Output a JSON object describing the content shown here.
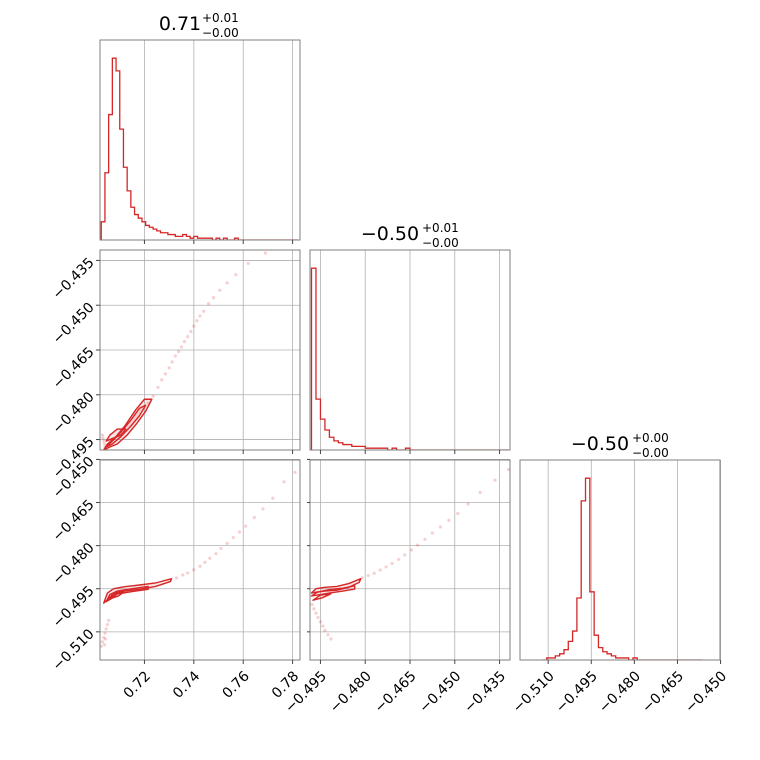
{
  "chart_data": {
    "type": "corner",
    "color": "#d62728",
    "parameters": [
      {
        "title_value": "0.71",
        "title_upper": "+0.01",
        "title_lower": "−0.00",
        "range": [
          0.702,
          0.783
        ],
        "ticks": [
          0.72,
          0.74,
          0.76,
          0.78
        ],
        "tick_labels": [
          "0.72",
          "0.74",
          "0.76",
          "0.78"
        ]
      },
      {
        "title_value": "−0.50",
        "title_upper": "+0.01",
        "title_lower": "−0.00",
        "range": [
          -0.4985,
          -0.4315
        ],
        "ticks": [
          -0.495,
          -0.48,
          -0.465,
          -0.45,
          -0.435
        ],
        "tick_labels": [
          "−0.495",
          "−0.480",
          "−0.465",
          "−0.450",
          "−0.435"
        ]
      },
      {
        "title_value": "−0.50",
        "title_upper": "+0.00",
        "title_lower": "−0.00",
        "range": [
          -0.5198,
          -0.4502
        ],
        "ticks": [
          -0.51,
          -0.495,
          -0.48,
          -0.465,
          -0.45
        ],
        "tick_labels": [
          "−0.510",
          "−0.495",
          "−0.480",
          "−0.465",
          "−0.450"
        ]
      }
    ],
    "histograms": [
      {
        "parameter": 0,
        "bin_edges": [
          0.7025,
          0.704,
          0.7055,
          0.707,
          0.7085,
          0.71,
          0.7115,
          0.713,
          0.7145,
          0.716,
          0.7175,
          0.719,
          0.7205,
          0.722,
          0.7235,
          0.725,
          0.7265,
          0.728,
          0.7295,
          0.731,
          0.7325,
          0.734,
          0.7355,
          0.737,
          0.7385,
          0.74,
          0.7415,
          0.743,
          0.7445,
          0.746,
          0.7475,
          0.749,
          0.7505,
          0.752,
          0.7535,
          0.755,
          0.7565,
          0.758,
          0.7595,
          0.761,
          0.7625,
          0.764,
          0.7655,
          0.767,
          0.7685,
          0.77,
          0.7715,
          0.773,
          0.7745,
          0.776,
          0.7775,
          0.779,
          0.7805,
          0.782
        ],
        "counts": [
          10,
          37,
          69,
          100,
          93,
          61,
          40,
          27,
          18,
          14,
          12,
          10,
          8,
          7,
          6,
          5,
          4,
          4,
          3,
          3,
          2,
          2,
          3,
          2,
          1,
          2,
          1,
          1,
          1,
          1,
          0,
          1,
          0,
          1,
          0,
          0,
          1,
          0,
          0,
          0,
          0,
          0,
          0,
          0,
          0,
          0,
          0,
          0,
          0,
          0,
          0,
          0,
          0
        ]
      },
      {
        "parameter": 1,
        "bin_edges": [
          -0.498,
          -0.4965,
          -0.495,
          -0.4935,
          -0.492,
          -0.4905,
          -0.489,
          -0.4875,
          -0.486,
          -0.4845,
          -0.483,
          -0.4815,
          -0.48,
          -0.4785,
          -0.477,
          -0.4755,
          -0.474,
          -0.4725,
          -0.471,
          -0.4695,
          -0.468,
          -0.4665,
          -0.465,
          -0.4635,
          -0.462,
          -0.4605,
          -0.459,
          -0.4575,
          -0.456,
          -0.4545,
          -0.453,
          -0.4515,
          -0.45,
          -0.4485,
          -0.447,
          -0.4455,
          -0.444,
          -0.4425,
          -0.441,
          -0.4395,
          -0.438,
          -0.4365,
          -0.435,
          -0.4335,
          -0.432
        ],
        "counts": [
          100,
          28,
          17,
          11,
          7,
          5,
          4,
          3,
          3,
          2,
          2,
          2,
          1,
          1,
          1,
          1,
          1,
          0,
          1,
          0,
          0,
          1,
          0,
          0,
          0,
          0,
          0,
          0,
          0,
          0,
          0,
          0,
          0,
          0,
          0,
          0,
          0,
          0,
          0,
          0,
          0,
          0,
          0,
          0
        ]
      },
      {
        "parameter": 2,
        "bin_edges": [
          -0.512,
          -0.5105,
          -0.509,
          -0.5075,
          -0.506,
          -0.5045,
          -0.503,
          -0.5015,
          -0.5,
          -0.4985,
          -0.497,
          -0.4955,
          -0.494,
          -0.4925,
          -0.491,
          -0.4895,
          -0.488,
          -0.4865,
          -0.485,
          -0.4835,
          -0.482,
          -0.4805,
          -0.479,
          -0.4775,
          -0.476,
          -0.4745,
          -0.473,
          -0.4715,
          -0.47,
          -0.4685,
          -0.467,
          -0.4655,
          -0.464,
          -0.4625,
          -0.461,
          -0.4595,
          -0.458,
          -0.4565
        ],
        "counts": [
          0,
          1,
          1,
          2,
          3,
          5,
          9,
          14,
          30,
          77,
          88,
          33,
          12,
          6,
          4,
          3,
          2,
          1,
          1,
          1,
          0,
          1,
          0,
          0,
          0,
          0,
          0,
          0,
          0,
          0,
          0,
          0,
          0,
          0,
          0,
          0,
          0
        ]
      }
    ],
    "pairs": [
      {
        "x_param": 0,
        "y_param": 1,
        "contours": [
          [
            [
              0.7035,
              -0.4985
            ],
            [
              0.706,
              -0.4975
            ],
            [
              0.709,
              -0.4965
            ],
            [
              0.713,
              -0.4935
            ],
            [
              0.717,
              -0.4895
            ],
            [
              0.7205,
              -0.4855
            ],
            [
              0.723,
              -0.4815
            ],
            [
              0.72,
              -0.4815
            ],
            [
              0.7165,
              -0.485
            ],
            [
              0.712,
              -0.4905
            ],
            [
              0.7085,
              -0.494
            ],
            [
              0.705,
              -0.4965
            ],
            [
              0.7035,
              -0.4985
            ]
          ],
          [
            [
              0.7045,
              -0.4975
            ],
            [
              0.707,
              -0.4965
            ],
            [
              0.7105,
              -0.494
            ],
            [
              0.7145,
              -0.4905
            ],
            [
              0.718,
              -0.487
            ],
            [
              0.7205,
              -0.4835
            ],
            [
              0.718,
              -0.4845
            ],
            [
              0.7145,
              -0.4885
            ],
            [
              0.7105,
              -0.4925
            ],
            [
              0.707,
              -0.4955
            ],
            [
              0.7045,
              -0.4975
            ]
          ],
          [
            [
              0.7045,
              -0.4955
            ],
            [
              0.7075,
              -0.4945
            ],
            [
              0.7105,
              -0.4935
            ],
            [
              0.7125,
              -0.4915
            ],
            [
              0.709,
              -0.4915
            ],
            [
              0.706,
              -0.4935
            ],
            [
              0.7045,
              -0.4955
            ]
          ]
        ],
        "scatter": [
          [
            0.703,
            -0.4935
          ],
          [
            0.7032,
            -0.4945
          ],
          [
            0.7035,
            -0.4955
          ],
          [
            0.7038,
            -0.4965
          ],
          [
            0.704,
            -0.4975
          ],
          [
            0.7042,
            -0.4982
          ],
          [
            0.7215,
            -0.4828
          ],
          [
            0.7235,
            -0.4805
          ],
          [
            0.7255,
            -0.4775
          ],
          [
            0.727,
            -0.475
          ],
          [
            0.7285,
            -0.473
          ],
          [
            0.73,
            -0.471
          ],
          [
            0.7312,
            -0.469
          ],
          [
            0.7325,
            -0.467
          ],
          [
            0.7338,
            -0.4655
          ],
          [
            0.735,
            -0.464
          ],
          [
            0.7362,
            -0.4622
          ],
          [
            0.7375,
            -0.4605
          ],
          [
            0.7388,
            -0.4588
          ],
          [
            0.74,
            -0.457
          ],
          [
            0.7412,
            -0.4552
          ],
          [
            0.7425,
            -0.4536
          ],
          [
            0.744,
            -0.452
          ],
          [
            0.746,
            -0.4495
          ],
          [
            0.748,
            -0.4475
          ],
          [
            0.7505,
            -0.445
          ],
          [
            0.7535,
            -0.4425
          ],
          [
            0.757,
            -0.4398
          ],
          [
            0.762,
            -0.436
          ],
          [
            0.769,
            -0.4325
          ],
          [
            0.7785,
            -0.4308
          ]
        ]
      },
      {
        "x_param": 0,
        "y_param": 2,
        "contours": [
          [
            [
              0.7035,
              -0.5
            ],
            [
              0.705,
              -0.4965
            ],
            [
              0.7075,
              -0.495
            ],
            [
              0.712,
              -0.4943
            ],
            [
              0.718,
              -0.4937
            ],
            [
              0.7245,
              -0.493
            ],
            [
              0.731,
              -0.4915
            ],
            [
              0.7305,
              -0.4925
            ],
            [
              0.7245,
              -0.4942
            ],
            [
              0.718,
              -0.4952
            ],
            [
              0.712,
              -0.4958
            ],
            [
              0.7075,
              -0.4965
            ],
            [
              0.7055,
              -0.4985
            ],
            [
              0.7035,
              -0.5
            ]
          ],
          [
            [
              0.7045,
              -0.4995
            ],
            [
              0.706,
              -0.497
            ],
            [
              0.709,
              -0.4958
            ],
            [
              0.715,
              -0.495
            ],
            [
              0.7215,
              -0.4942
            ],
            [
              0.7215,
              -0.4952
            ],
            [
              0.715,
              -0.496
            ],
            [
              0.709,
              -0.4968
            ],
            [
              0.7065,
              -0.4985
            ],
            [
              0.7045,
              -0.4995
            ]
          ],
          [
            [
              0.706,
              -0.4985
            ],
            [
              0.708,
              -0.4968
            ],
            [
              0.7115,
              -0.4962
            ],
            [
              0.7095,
              -0.4975
            ],
            [
              0.706,
              -0.4985
            ]
          ]
        ],
        "scatter": [
          [
            0.7025,
            -0.515
          ],
          [
            0.703,
            -0.5135
          ],
          [
            0.7035,
            -0.512
          ],
          [
            0.704,
            -0.5105
          ],
          [
            0.7045,
            -0.509
          ],
          [
            0.705,
            -0.5075
          ],
          [
            0.7055,
            -0.506
          ],
          [
            0.7038,
            -0.5145
          ],
          [
            0.7042,
            -0.5125
          ],
          [
            0.733,
            -0.4912
          ],
          [
            0.7355,
            -0.4902
          ],
          [
            0.7375,
            -0.4895
          ],
          [
            0.74,
            -0.4884
          ],
          [
            0.7425,
            -0.4872
          ],
          [
            0.7445,
            -0.4858
          ],
          [
            0.7465,
            -0.4844
          ],
          [
            0.749,
            -0.4828
          ],
          [
            0.751,
            -0.481
          ],
          [
            0.7535,
            -0.4792
          ],
          [
            0.756,
            -0.4772
          ],
          [
            0.7585,
            -0.4752
          ],
          [
            0.761,
            -0.4732
          ],
          [
            0.7645,
            -0.4702
          ],
          [
            0.768,
            -0.4672
          ],
          [
            0.772,
            -0.4635
          ],
          [
            0.7765,
            -0.4578
          ],
          [
            0.781,
            -0.4545
          ]
        ]
      },
      {
        "x_param": 1,
        "y_param": 2,
        "contours": [
          [
            [
              -0.498,
              -0.4965
            ],
            [
              -0.4965,
              -0.495
            ],
            [
              -0.4935,
              -0.4945
            ],
            [
              -0.4895,
              -0.4942
            ],
            [
              -0.4855,
              -0.4932
            ],
            [
              -0.4815,
              -0.4915
            ],
            [
              -0.482,
              -0.4928
            ],
            [
              -0.4855,
              -0.4945
            ],
            [
              -0.4895,
              -0.4955
            ],
            [
              -0.4935,
              -0.4958
            ],
            [
              -0.4965,
              -0.4962
            ],
            [
              -0.498,
              -0.4965
            ]
          ],
          [
            [
              -0.498,
              -0.4975
            ],
            [
              -0.496,
              -0.4962
            ],
            [
              -0.492,
              -0.4953
            ],
            [
              -0.4875,
              -0.4948
            ],
            [
              -0.4835,
              -0.494
            ],
            [
              -0.4835,
              -0.4951
            ],
            [
              -0.4875,
              -0.4958
            ],
            [
              -0.492,
              -0.4965
            ],
            [
              -0.496,
              -0.4972
            ],
            [
              -0.498,
              -0.4975
            ]
          ],
          [
            [
              -0.4975,
              -0.499
            ],
            [
              -0.495,
              -0.4972
            ],
            [
              -0.4915,
              -0.4968
            ],
            [
              -0.4945,
              -0.4982
            ],
            [
              -0.4975,
              -0.499
            ]
          ]
        ],
        "scatter": [
          [
            -0.4978,
            -0.5005
          ],
          [
            -0.4972,
            -0.502
          ],
          [
            -0.4965,
            -0.5035
          ],
          [
            -0.4958,
            -0.505
          ],
          [
            -0.495,
            -0.5065
          ],
          [
            -0.4942,
            -0.508
          ],
          [
            -0.4935,
            -0.5095
          ],
          [
            -0.4925,
            -0.511
          ],
          [
            -0.4915,
            -0.5125
          ],
          [
            -0.481,
            -0.4912
          ],
          [
            -0.479,
            -0.4904
          ],
          [
            -0.477,
            -0.4896
          ],
          [
            -0.475,
            -0.4885
          ],
          [
            -0.473,
            -0.4874
          ],
          [
            -0.471,
            -0.4862
          ],
          [
            -0.4688,
            -0.4848
          ],
          [
            -0.4668,
            -0.4832
          ],
          [
            -0.4645,
            -0.4815
          ],
          [
            -0.4625,
            -0.4798
          ],
          [
            -0.46,
            -0.4778
          ],
          [
            -0.4575,
            -0.4756
          ],
          [
            -0.4548,
            -0.4735
          ],
          [
            -0.452,
            -0.4712
          ],
          [
            -0.449,
            -0.4688
          ],
          [
            -0.4455,
            -0.4655
          ],
          [
            -0.4415,
            -0.4615
          ],
          [
            -0.4365,
            -0.4572
          ],
          [
            -0.432,
            -0.4535
          ]
        ]
      }
    ],
    "grid": true,
    "legend": "none"
  }
}
